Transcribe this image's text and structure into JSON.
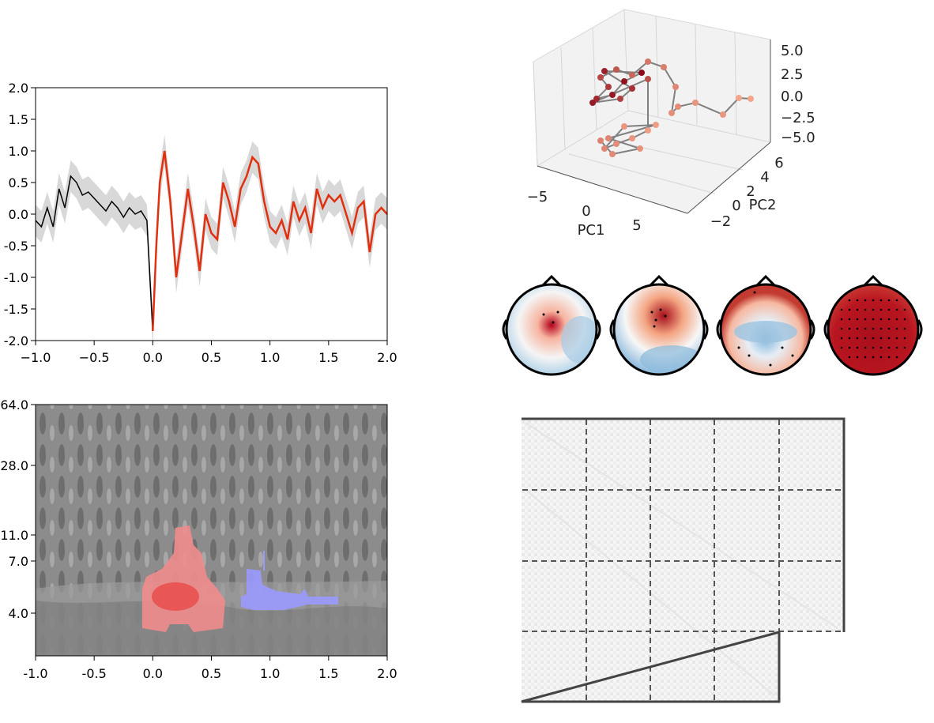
{
  "chart_data": [
    {
      "type": "line",
      "title": "",
      "xlabel": "",
      "ylabel": "",
      "xlim": [
        -1.0,
        2.0
      ],
      "ylim": [
        -2.0,
        2.0
      ],
      "x_ticks": [
        "−1.0",
        "−0.5",
        "0.0",
        "0.5",
        "1.0",
        "1.5",
        "2.0"
      ],
      "y_ticks": [
        "2.0",
        "1.5",
        "1.0",
        "0.5",
        "0.0",
        "-0.5",
        "-1.0",
        "-1.5",
        "-2.0"
      ],
      "grid": false,
      "colors": {
        "baseline": "#000000",
        "post": "#e03010",
        "band": "#d0d0d0"
      },
      "series": [
        {
          "x": [
            -1.0,
            -0.95,
            -0.9,
            -0.85,
            -0.8,
            -0.75,
            -0.7,
            -0.65,
            -0.6,
            -0.55,
            -0.5,
            -0.45,
            -0.4,
            -0.35,
            -0.3,
            -0.25,
            -0.2,
            -0.15,
            -0.1,
            -0.05,
            0.0,
            0.03,
            0.06,
            0.1,
            0.15,
            0.2,
            0.25,
            0.3,
            0.35,
            0.4,
            0.45,
            0.5,
            0.55,
            0.6,
            0.65,
            0.7,
            0.75,
            0.8,
            0.85,
            0.9,
            0.95,
            1.0,
            1.05,
            1.1,
            1.15,
            1.2,
            1.25,
            1.3,
            1.35,
            1.4,
            1.45,
            1.5,
            1.55,
            1.6,
            1.65,
            1.7,
            1.75,
            1.8,
            1.85,
            1.9,
            1.95,
            2.0
          ],
          "y": [
            -0.1,
            -0.2,
            0.1,
            -0.2,
            0.4,
            0.1,
            0.6,
            0.5,
            0.3,
            0.35,
            0.25,
            0.15,
            0.05,
            0.2,
            0.1,
            -0.05,
            0.1,
            0.0,
            0.05,
            -0.1,
            -1.85,
            -0.5,
            0.5,
            1.0,
            0.2,
            -1.0,
            -0.3,
            0.4,
            -0.2,
            -0.9,
            0.0,
            -0.3,
            -0.4,
            0.5,
            0.2,
            -0.2,
            0.4,
            0.6,
            0.9,
            0.8,
            0.2,
            -0.2,
            -0.3,
            -0.1,
            -0.4,
            0.2,
            -0.1,
            0.1,
            -0.3,
            0.4,
            0.1,
            0.3,
            0.2,
            0.3,
            0.0,
            -0.3,
            0.1,
            0.2,
            -0.6,
            0.0,
            0.1,
            0.0
          ]
        }
      ]
    },
    {
      "type": "heatmap",
      "title": "",
      "xlabel": "",
      "ylabel": "",
      "xlim": [
        -1.0,
        2.0
      ],
      "x_ticks": [
        "-1.0",
        "-0.5",
        "0.0",
        "0.5",
        "1.0",
        "1.5",
        "2.0"
      ],
      "y_ticks": [
        "64.0",
        "28.0",
        "11.0",
        "7.0",
        "4.0"
      ],
      "colors": {
        "positive_cluster": "#f07070",
        "negative_cluster": "#8888ff",
        "background": "#8a8a8a"
      },
      "clusters": [
        {
          "sign": "positive",
          "x_range": [
            -0.1,
            0.55
          ],
          "y_center": 5.0
        },
        {
          "sign": "negative",
          "x_range": [
            0.75,
            1.6
          ],
          "y_center": 5.0
        }
      ]
    },
    {
      "type": "scatter",
      "title": "",
      "x_ticks": [
        "−5",
        "0",
        "5"
      ],
      "y_ticks": [
        "−2",
        "0",
        "2",
        "4",
        "6"
      ],
      "z_ticks": [
        "5.0",
        "2.5",
        "0.0",
        "−2.5",
        "−5.0"
      ],
      "xlabel": "PC1",
      "ylabel": "PC2",
      "colors": {
        "early": "#f4a58a",
        "late": "#8b0a1a",
        "path": "#808080"
      }
    },
    {
      "type": "heatmap",
      "title": "",
      "topomaps": 4,
      "colormap": "RdBu_r"
    },
    {
      "type": "heatmap",
      "title": "",
      "grid_blocks": "5x4 partial",
      "colormap": "Greys"
    }
  ]
}
